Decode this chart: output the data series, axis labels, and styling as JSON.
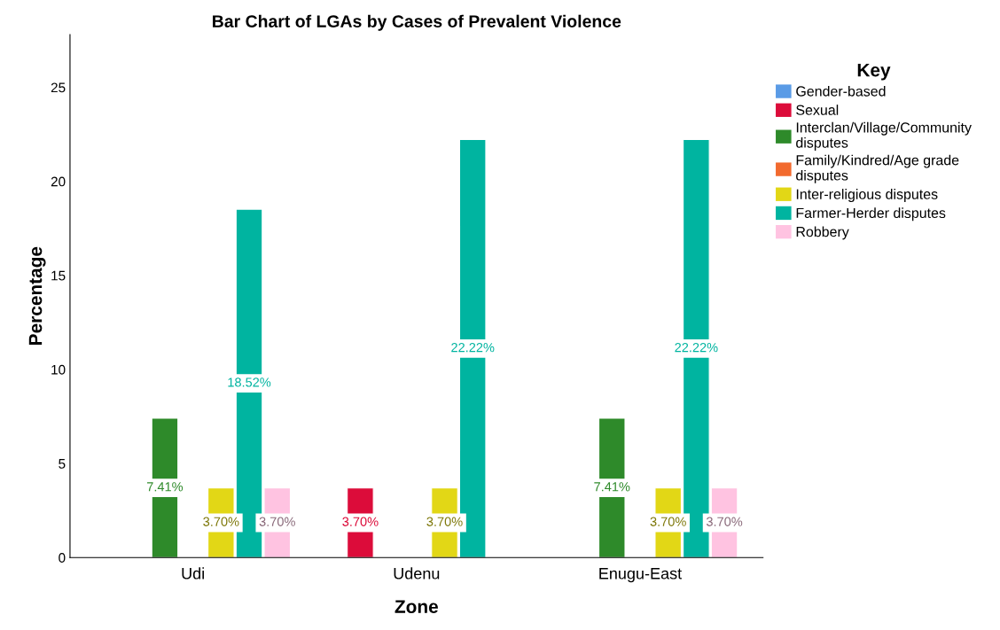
{
  "chart_data": {
    "type": "bar",
    "title": "Bar Chart of LGAs by Cases of Prevalent Violence",
    "xlabel": "Zone",
    "ylabel": "Percentage",
    "legend_title": "Key",
    "categories": [
      "Udi",
      "Udenu",
      "Enugu-East"
    ],
    "series": [
      {
        "name": "Gender-based",
        "color": "#5a9be6",
        "values": [
          null,
          null,
          null
        ],
        "value_labels": [
          null,
          null,
          null
        ]
      },
      {
        "name": "Sexual",
        "color": "#dc0c3a",
        "values": [
          null,
          3.7,
          null
        ],
        "value_labels": [
          null,
          "3.70%",
          null
        ]
      },
      {
        "name": "Interclan/Village/Community\ndisputes",
        "color": "#2e8a2a",
        "values": [
          7.41,
          null,
          7.41
        ],
        "value_labels": [
          "7.41%",
          null,
          "7.41%"
        ]
      },
      {
        "name": "Family/Kindred/Age grade\ndisputes",
        "color": "#f26a2e",
        "values": [
          null,
          null,
          null
        ],
        "value_labels": [
          null,
          null,
          null
        ]
      },
      {
        "name": "Inter-religious disputes",
        "color": "#e2d716",
        "values": [
          3.7,
          3.7,
          3.7
        ],
        "value_labels": [
          "3.70%",
          "3.70%",
          "3.70%"
        ]
      },
      {
        "name": "Farmer-Herder disputes",
        "color": "#00b4a0",
        "values": [
          18.52,
          22.22,
          22.22
        ],
        "value_labels": [
          "18.52%",
          "22.22%",
          "22.22%"
        ]
      },
      {
        "name": "Robbery",
        "color": "#ffc3e1",
        "values": [
          3.7,
          null,
          3.7
        ],
        "value_labels": [
          "3.70%",
          null,
          "3.70%"
        ]
      }
    ],
    "ylim": [
      0,
      27.8
    ],
    "yticks": [
      0,
      5,
      10,
      15,
      20,
      25
    ],
    "grid": false,
    "legend": "right"
  }
}
